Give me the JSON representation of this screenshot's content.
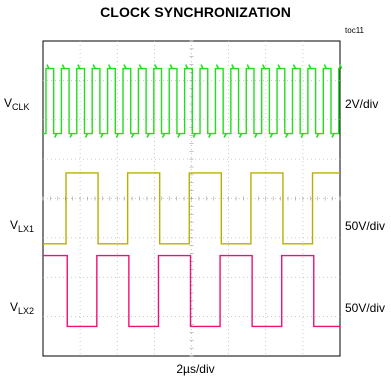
{
  "chart_data": {
    "type": "line",
    "title": "CLOCK SYNCHRONIZATION",
    "figure_id": "toc11",
    "xlabel": "2µs/div",
    "divisions": {
      "x": 8,
      "y": 8
    },
    "x_scale_us_per_div": 2,
    "series": [
      {
        "name": "V",
        "sub": "CLK",
        "scale": "2V/div",
        "color": "#22dd22",
        "period_div": 0.415,
        "duty": 0.5,
        "high_div": 7.3,
        "low_div": 5.65,
        "phase_div": 0.08
      },
      {
        "name": "V",
        "sub": "LX1",
        "scale": "50V/div",
        "color": "#b8b000",
        "period_div": 1.66,
        "duty": 0.52,
        "high_div": 4.65,
        "low_div": 2.85,
        "phase_div": 0.62
      },
      {
        "name": "V",
        "sub": "LX2",
        "scale": "50V/div",
        "color": "#ee1177",
        "period_div": 1.66,
        "duty": 0.52,
        "high_div": 2.55,
        "low_div": 0.75,
        "phase_div": 1.45
      }
    ]
  }
}
